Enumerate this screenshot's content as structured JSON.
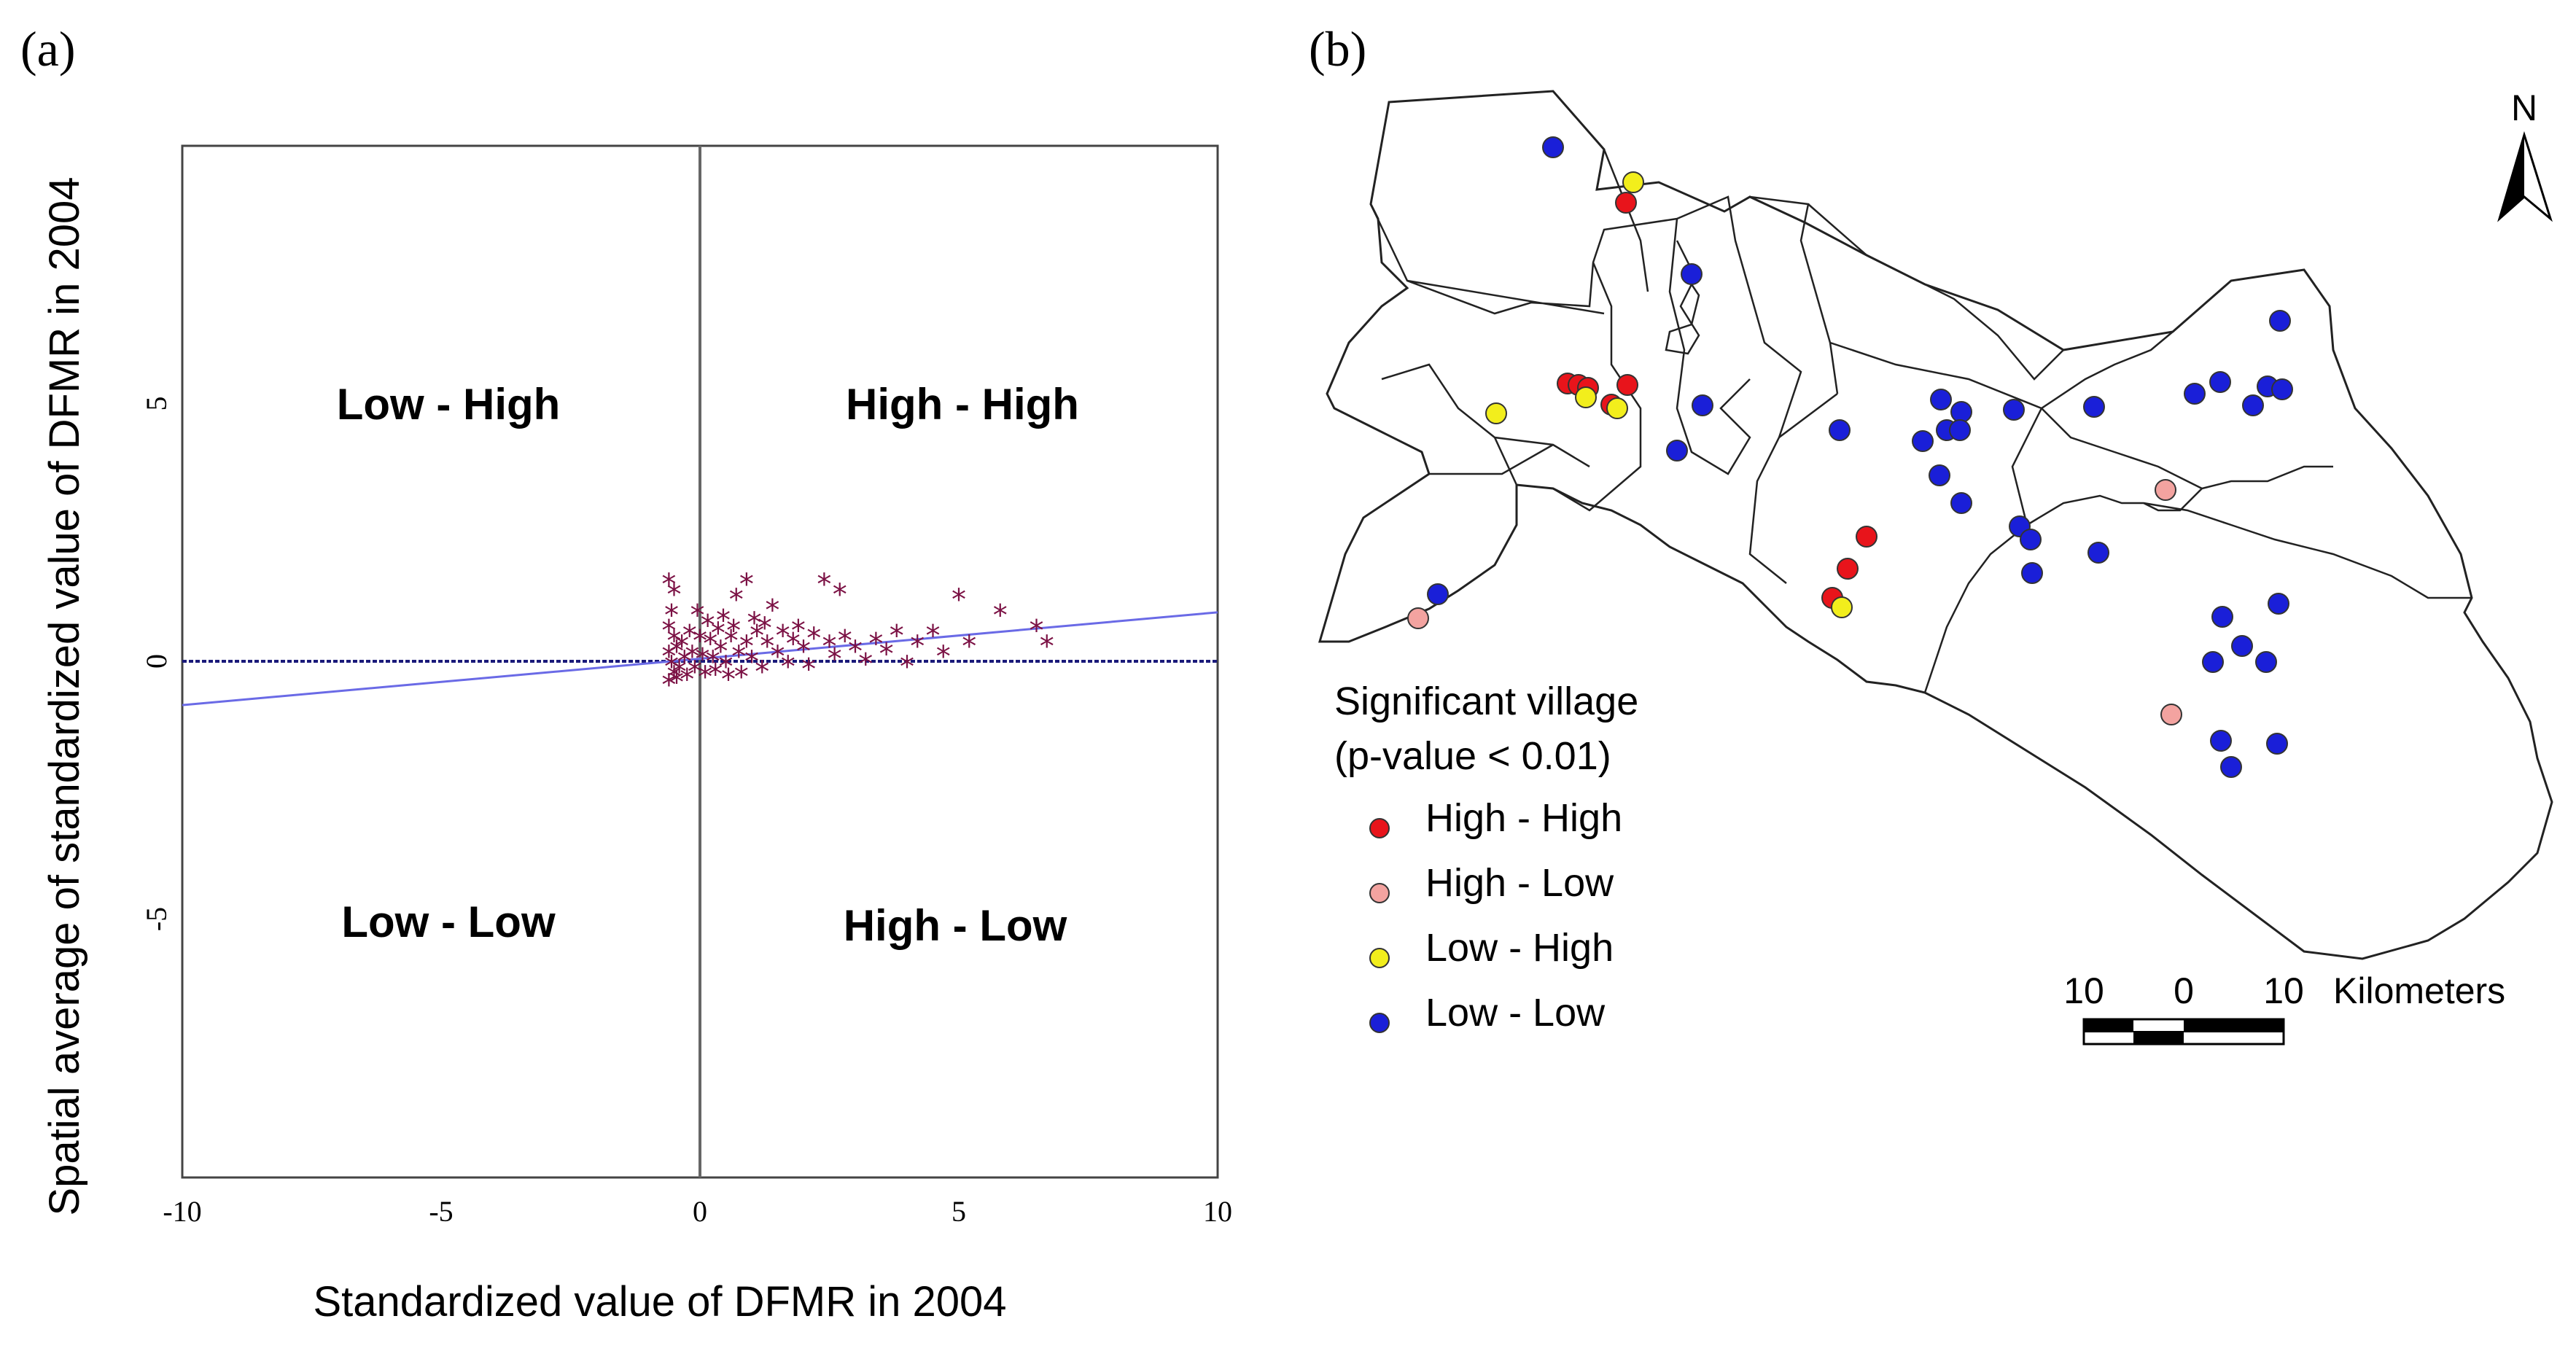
{
  "panel_a_label": "(a)",
  "panel_b_label": "(b)",
  "chart_data": [
    {
      "type": "scatter",
      "panel": "a",
      "xlabel": "Standardized value of DFMR in 2004",
      "ylabel": "Spatial average of standardized value of DFMR in 2004",
      "xlim": [
        -10,
        10
      ],
      "ylim": [
        -10,
        10
      ],
      "xticks": [
        -10,
        -5,
        0,
        5,
        10
      ],
      "yticks": [
        -5,
        0,
        5
      ],
      "grid": false,
      "quadrant_labels": {
        "top_left": "Low - High",
        "top_right": "High - High",
        "bottom_left": "Low - Low",
        "bottom_right": "High - Low"
      },
      "colors": {
        "points": "#7b1144",
        "regression": "#6a6ae6",
        "zero_line": "#1a1a7a",
        "axis": "#555555"
      },
      "regression": {
        "slope": 0.09,
        "intercept": 0.05
      },
      "points": [
        [
          -0.6,
          1.5
        ],
        [
          -0.5,
          1.3
        ],
        [
          -0.55,
          0.9
        ],
        [
          -0.6,
          0.6
        ],
        [
          -0.5,
          0.4
        ],
        [
          -0.45,
          0.2
        ],
        [
          -0.6,
          0.1
        ],
        [
          -0.55,
          -0.1
        ],
        [
          -0.5,
          -0.3
        ],
        [
          -0.6,
          -0.45
        ],
        [
          -0.4,
          -0.2
        ],
        [
          -0.35,
          0.3
        ],
        [
          -0.3,
          0.0
        ],
        [
          -0.25,
          -0.35
        ],
        [
          -0.2,
          0.5
        ],
        [
          -0.15,
          0.1
        ],
        [
          -0.1,
          -0.2
        ],
        [
          0.0,
          0.4
        ],
        [
          0.05,
          0.05
        ],
        [
          0.1,
          -0.3
        ],
        [
          0.2,
          0.35
        ],
        [
          0.25,
          0.0
        ],
        [
          0.3,
          -0.25
        ],
        [
          0.35,
          0.55
        ],
        [
          0.4,
          0.2
        ],
        [
          0.5,
          -0.1
        ],
        [
          0.6,
          0.4
        ],
        [
          0.7,
          1.2
        ],
        [
          0.75,
          0.1
        ],
        [
          0.8,
          -0.3
        ],
        [
          0.9,
          0.3
        ],
        [
          0.9,
          1.5
        ],
        [
          1.0,
          0.0
        ],
        [
          1.1,
          0.5
        ],
        [
          1.2,
          -0.2
        ],
        [
          1.3,
          0.3
        ],
        [
          1.4,
          1.0
        ],
        [
          1.5,
          0.1
        ],
        [
          1.6,
          0.5
        ],
        [
          1.7,
          -0.1
        ],
        [
          1.8,
          0.35
        ],
        [
          1.9,
          0.6
        ],
        [
          2.0,
          0.2
        ],
        [
          2.1,
          -0.15
        ],
        [
          2.2,
          0.45
        ],
        [
          2.4,
          1.5
        ],
        [
          2.5,
          0.3
        ],
        [
          2.6,
          0.05
        ],
        [
          2.7,
          1.3
        ],
        [
          2.8,
          0.4
        ],
        [
          3.0,
          0.2
        ],
        [
          3.2,
          -0.05
        ],
        [
          3.4,
          0.35
        ],
        [
          3.6,
          0.15
        ],
        [
          3.8,
          0.5
        ],
        [
          4.0,
          -0.1
        ],
        [
          4.2,
          0.3
        ],
        [
          4.5,
          0.5
        ],
        [
          4.7,
          0.1
        ],
        [
          5.0,
          1.2
        ],
        [
          5.2,
          0.3
        ],
        [
          5.8,
          0.9
        ],
        [
          6.5,
          0.6
        ],
        [
          6.7,
          0.3
        ],
        [
          -0.05,
          0.9
        ],
        [
          0.15,
          0.7
        ],
        [
          0.45,
          0.8
        ],
        [
          0.65,
          0.6
        ],
        [
          1.05,
          0.75
        ],
        [
          1.25,
          0.65
        ],
        [
          -0.45,
          -0.4
        ],
        [
          0.55,
          -0.35
        ]
      ]
    },
    {
      "type": "map",
      "panel": "b",
      "north_label": "N",
      "legend_title_line1": "Significant village",
      "legend_title_line2": "(p-value < 0.01)",
      "legend": [
        {
          "label": "High - High",
          "color": "#e8141b"
        },
        {
          "label": "High - Low",
          "color": "#f3a3a0"
        },
        {
          "label": "Low - High",
          "color": "#f2ee1c"
        },
        {
          "label": "Low - Low",
          "color": "#1a1fd8"
        }
      ],
      "scale_bar": {
        "ticks": [
          "10",
          "0",
          "10"
        ],
        "unit": "Kilometers"
      }
    }
  ]
}
